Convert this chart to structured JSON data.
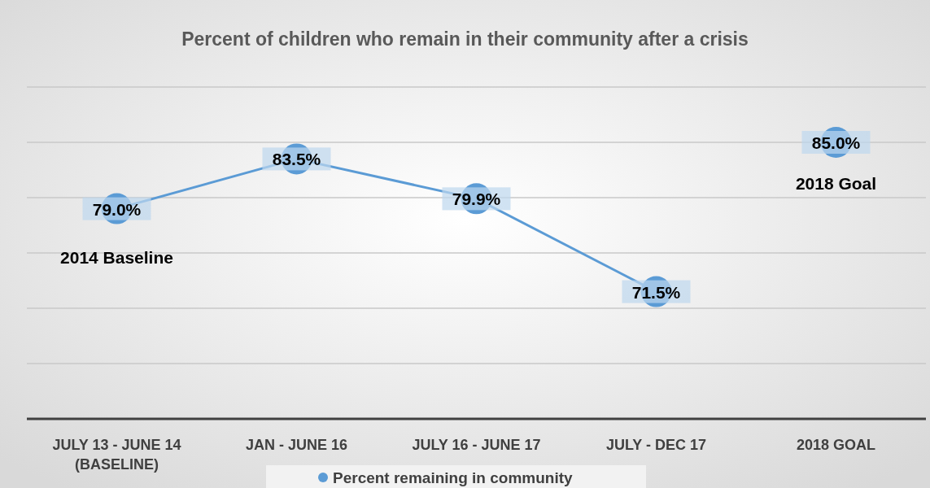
{
  "chart_data": {
    "type": "line",
    "title": "Percent of children who remain in their community after a crisis",
    "categories": [
      "JULY 13 - JUNE 14\n(BASELINE)",
      "JAN - JUNE 16",
      "JULY 16 - JUNE 17",
      "JULY - DEC 17",
      "2018 GOAL"
    ],
    "series": [
      {
        "name": "Percent remaining in community",
        "color": "#5b9bd5",
        "values": [
          79.0,
          83.5,
          79.9,
          71.5,
          null
        ],
        "value_labels": [
          "79.0%",
          "83.5%",
          "79.9%",
          "71.5%",
          null
        ]
      },
      {
        "type": "scatter",
        "color": "#5b9bd5",
        "values": [
          null,
          null,
          null,
          null,
          85.0
        ],
        "value_labels": [
          null,
          null,
          null,
          null,
          "85.0%"
        ]
      }
    ],
    "ylim": [
      60,
      90
    ],
    "yticks": [
      {
        "value": 60,
        "label": null
      },
      {
        "value": 65,
        "label": null
      },
      {
        "value": 70,
        "label": null
      },
      {
        "value": 75,
        "label": null
      },
      {
        "value": 80,
        "label": null
      },
      {
        "value": 85,
        "label": null
      },
      {
        "value": 90,
        "label": null
      }
    ],
    "grid": "y",
    "tick_labels": "x",
    "marker": "circle",
    "legend": "bottom",
    "annotations": [
      "2014 Baseline",
      "2018 Goal"
    ]
  }
}
